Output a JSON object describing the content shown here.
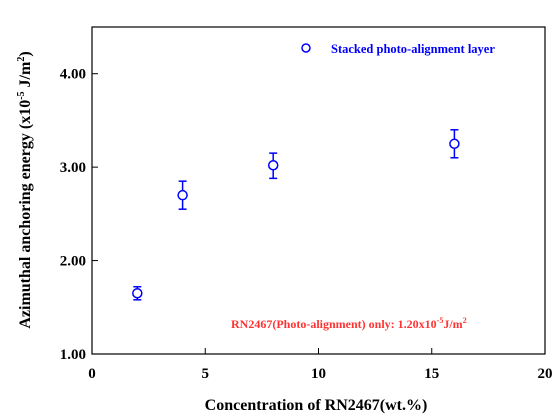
{
  "chart_data": {
    "type": "scatter",
    "xlabel": "Concentration of RN2467(wt.%)",
    "ylabel_main": "Azimuthal anchoring energy (x10",
    "ylabel_exp1": "-5",
    "ylabel_mid": " J/m",
    "ylabel_exp2": "2",
    "ylabel_end": ")",
    "xlim": [
      0,
      20
    ],
    "ylim": [
      1.0,
      4.5
    ],
    "x_ticks": [
      0,
      5,
      10,
      15,
      20
    ],
    "x_tick_labels": [
      "0",
      "5",
      "10",
      "15",
      "20"
    ],
    "y_ticks": [
      1.0,
      2.0,
      3.0,
      4.0
    ],
    "y_tick_labels": [
      "1.00",
      "2.00",
      "3.00",
      "4.00"
    ],
    "series": [
      {
        "name": "Stacked photo-alignment layer",
        "marker": "open-circle",
        "color": "#0000ff",
        "x": [
          2,
          4,
          8,
          16
        ],
        "y": [
          1.65,
          2.7,
          3.02,
          3.25
        ],
        "err_lower": [
          1.58,
          2.55,
          2.88,
          3.1
        ],
        "err_upper": [
          1.72,
          2.85,
          3.15,
          3.4
        ]
      }
    ],
    "legend_position": "top-right",
    "annotation": {
      "text_main": "RN2467(Photo-alignment) only: 1.20x10",
      "text_exp": "-5",
      "text_unit": "J/m",
      "text_exp2": "2",
      "color": "#ff3333",
      "position": "bottom-right"
    },
    "grid": false
  }
}
